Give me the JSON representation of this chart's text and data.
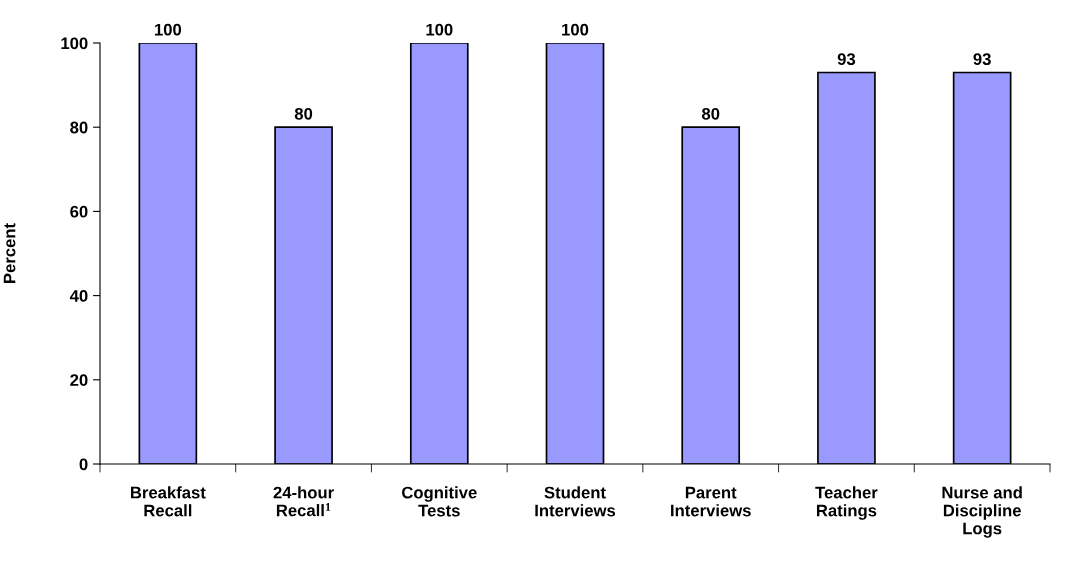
{
  "chart_data": {
    "type": "bar",
    "ylabel": "Percent",
    "categories": [
      "Breakfast\nRecall",
      "24-hour\nRecall$^{1}$",
      "Cognitive\nTests",
      "Student\nInterviews",
      "Parent\nInterviews",
      "Teacher\nRatings",
      "Nurse and\nDiscipline\nLogs"
    ],
    "values": [
      100,
      80,
      100,
      100,
      80,
      93,
      93
    ],
    "color": "#9999ff",
    "ylim": [
      0,
      100
    ],
    "yticks": [
      0,
      20,
      40,
      60,
      80,
      100
    ],
    "data_labels": true,
    "grid": false,
    "legend": false
  }
}
